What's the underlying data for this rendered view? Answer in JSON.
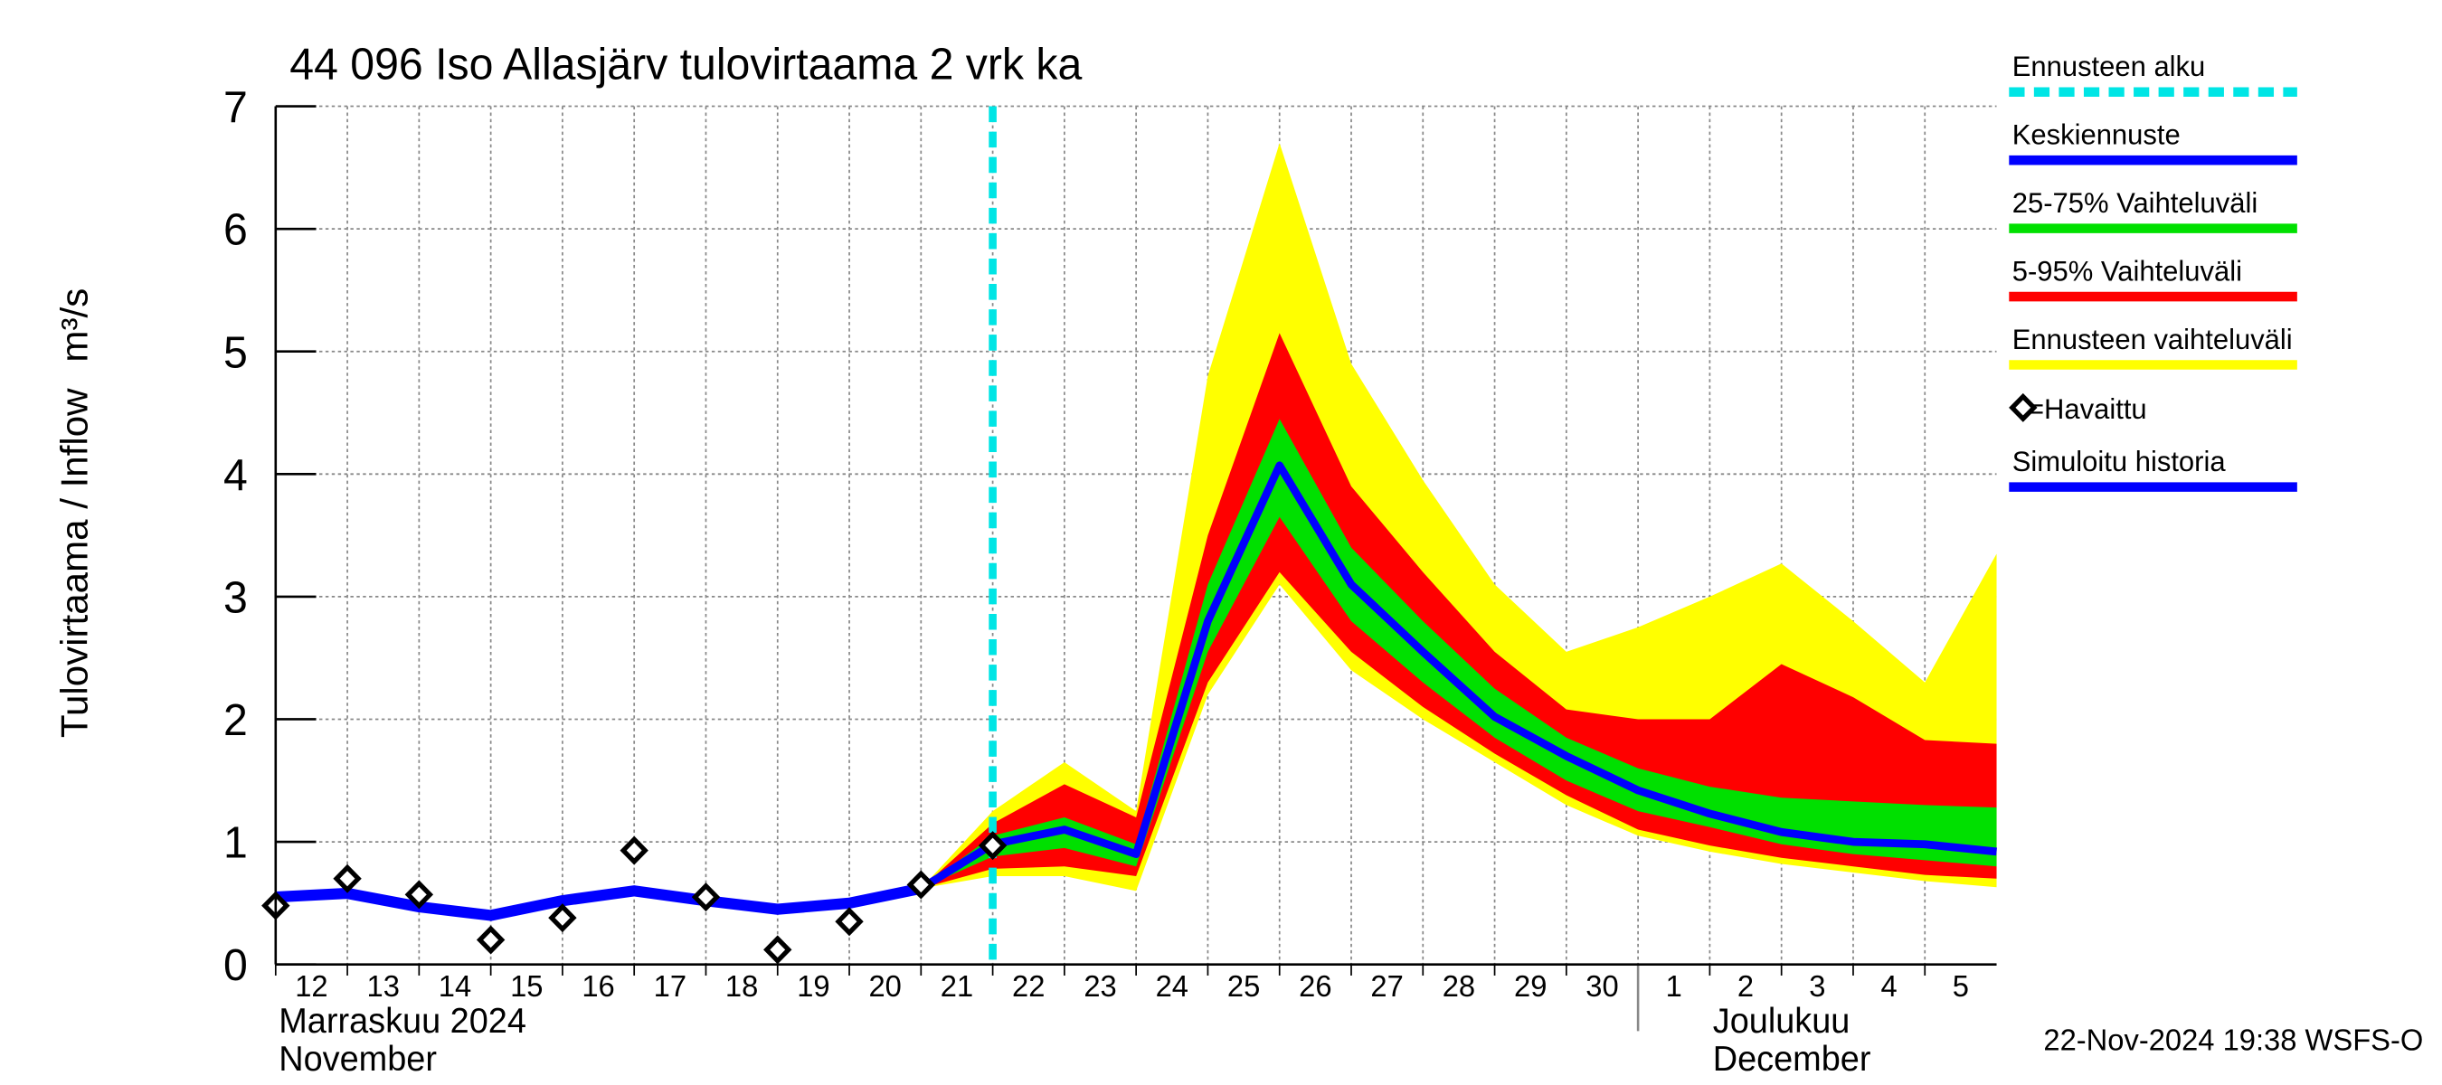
{
  "chart_data": {
    "type": "forecast-band",
    "title": "44 096 Iso Allasjärv tulovirtaama 2 vrk ka",
    "ylabel": "Tulovirtaama / Inflow",
    "yunit": "m³/s",
    "footer": "22-Nov-2024 19:38 WSFS-O",
    "x": [
      "2024-11-12",
      "2024-11-13",
      "2024-11-14",
      "2024-11-15",
      "2024-11-16",
      "2024-11-17",
      "2024-11-18",
      "2024-11-19",
      "2024-11-20",
      "2024-11-21",
      "2024-11-22",
      "2024-11-23",
      "2024-11-24",
      "2024-11-25",
      "2024-11-26",
      "2024-11-27",
      "2024-11-28",
      "2024-11-29",
      "2024-11-30",
      "2024-12-01",
      "2024-12-02",
      "2024-12-03",
      "2024-12-04",
      "2024-12-05",
      "2024-12-06"
    ],
    "xlim": [
      "2024-11-12",
      "2024-12-06"
    ],
    "xticks": [
      {
        "value": "2024-11-12",
        "label": "12"
      },
      {
        "value": "2024-11-13",
        "label": "13"
      },
      {
        "value": "2024-11-14",
        "label": "14"
      },
      {
        "value": "2024-11-15",
        "label": "15"
      },
      {
        "value": "2024-11-16",
        "label": "16"
      },
      {
        "value": "2024-11-17",
        "label": "17"
      },
      {
        "value": "2024-11-18",
        "label": "18"
      },
      {
        "value": "2024-11-19",
        "label": "19"
      },
      {
        "value": "2024-11-20",
        "label": "20"
      },
      {
        "value": "2024-11-21",
        "label": "21"
      },
      {
        "value": "2024-11-22",
        "label": "22"
      },
      {
        "value": "2024-11-23",
        "label": "23"
      },
      {
        "value": "2024-11-24",
        "label": "24"
      },
      {
        "value": "2024-11-25",
        "label": "25"
      },
      {
        "value": "2024-11-26",
        "label": "26"
      },
      {
        "value": "2024-11-27",
        "label": "27"
      },
      {
        "value": "2024-11-28",
        "label": "28"
      },
      {
        "value": "2024-11-29",
        "label": "29"
      },
      {
        "value": "2024-11-30",
        "label": "30"
      },
      {
        "value": "2024-12-01",
        "label": "1"
      },
      {
        "value": "2024-12-02",
        "label": "2"
      },
      {
        "value": "2024-12-03",
        "label": "3"
      },
      {
        "value": "2024-12-04",
        "label": "4"
      },
      {
        "value": "2024-12-05",
        "label": "5"
      }
    ],
    "month_labels": [
      {
        "x": "2024-11-12",
        "lines": [
          "Marraskuu 2024",
          "November"
        ]
      },
      {
        "x": "2024-12-01",
        "lines": [
          "Joulukuu",
          "December"
        ]
      }
    ],
    "ylim": [
      0,
      7
    ],
    "yticks": [
      0,
      1,
      2,
      3,
      4,
      5,
      6,
      7
    ],
    "grid": true,
    "forecast_start": {
      "name": "Ennusteen alku",
      "x": "2024-11-22",
      "color": "#00e5e5"
    },
    "bands": [
      {
        "name": "Ennusteen vaihteluväli",
        "color": "#ffff00",
        "low": [
          null,
          null,
          null,
          null,
          null,
          null,
          null,
          null,
          null,
          0.62,
          0.72,
          0.72,
          0.6,
          2.2,
          3.1,
          2.4,
          2.0,
          1.65,
          1.3,
          1.05,
          0.92,
          0.82,
          0.75,
          0.68,
          0.63
        ],
        "high": [
          null,
          null,
          null,
          null,
          null,
          null,
          null,
          null,
          null,
          0.62,
          1.25,
          1.65,
          1.25,
          4.8,
          6.7,
          4.9,
          3.95,
          3.1,
          2.55,
          2.75,
          3.0,
          3.27,
          2.8,
          2.3,
          3.35
        ]
      },
      {
        "name": "5-95% Vaihteluväli",
        "color": "#ff0000",
        "low": [
          null,
          null,
          null,
          null,
          null,
          null,
          null,
          null,
          null,
          0.62,
          0.78,
          0.8,
          0.72,
          2.3,
          3.2,
          2.55,
          2.1,
          1.72,
          1.38,
          1.1,
          0.97,
          0.87,
          0.8,
          0.73,
          0.7
        ],
        "high": [
          null,
          null,
          null,
          null,
          null,
          null,
          null,
          null,
          null,
          0.62,
          1.15,
          1.47,
          1.2,
          3.5,
          5.15,
          3.9,
          3.2,
          2.55,
          2.08,
          2.0,
          2.0,
          2.45,
          2.18,
          1.83,
          1.8
        ]
      },
      {
        "name": "25-75% Vaihteluväli",
        "color": "#00e000",
        "low": [
          null,
          null,
          null,
          null,
          null,
          null,
          null,
          null,
          null,
          0.62,
          0.88,
          0.95,
          0.8,
          2.55,
          3.65,
          2.8,
          2.3,
          1.85,
          1.5,
          1.25,
          1.12,
          0.98,
          0.9,
          0.85,
          0.8
        ],
        "high": [
          null,
          null,
          null,
          null,
          null,
          null,
          null,
          null,
          null,
          0.62,
          1.05,
          1.2,
          0.98,
          3.1,
          4.45,
          3.4,
          2.8,
          2.25,
          1.85,
          1.6,
          1.45,
          1.36,
          1.33,
          1.3,
          1.28
        ]
      }
    ],
    "series": [
      {
        "name": "Keskiennuste",
        "color": "#0000ff",
        "style": "line",
        "values": [
          null,
          null,
          null,
          null,
          null,
          null,
          null,
          null,
          null,
          0.62,
          0.98,
          1.1,
          0.9,
          2.8,
          4.07,
          3.1,
          2.55,
          2.02,
          1.7,
          1.42,
          1.23,
          1.08,
          1.0,
          0.98,
          0.92
        ]
      },
      {
        "name": "Simuloitu historia",
        "color": "#0000ff",
        "style": "line",
        "values": [
          0.55,
          0.58,
          0.47,
          0.4,
          0.52,
          0.6,
          0.52,
          0.45,
          0.5,
          0.62,
          null,
          null,
          null,
          null,
          null,
          null,
          null,
          null,
          null,
          null,
          null,
          null,
          null,
          null,
          null
        ]
      },
      {
        "name": "=Havaittu",
        "color": "#000000",
        "style": "marker",
        "values": [
          0.48,
          0.7,
          0.57,
          0.2,
          0.38,
          0.93,
          0.55,
          0.12,
          0.35,
          0.65,
          0.97,
          null,
          null,
          null,
          null,
          null,
          null,
          null,
          null,
          null,
          null,
          null,
          null,
          null,
          null
        ]
      }
    ]
  }
}
